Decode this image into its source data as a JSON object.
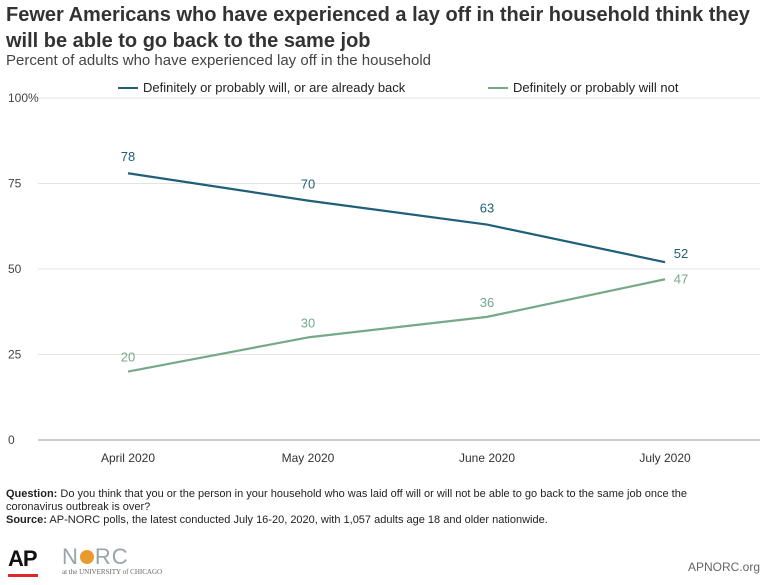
{
  "title": "Fewer Americans who have experienced a lay off in their household think they will be able to go back to the same job",
  "subtitle": "Percent of adults who have experienced lay off in the household",
  "notes": {
    "question_label": "Question:",
    "question_text": "Do you think that you or the person in your household who was laid off will or will not be able to go back to the same job once the coronavirus outbreak is over?",
    "source_label": "Source:",
    "source_text": "AP-NORC polls, the latest conducted July 16-20, 2020, with 1,057 adults age 18 and older nationwide."
  },
  "footer": {
    "ap_logo": "AP",
    "norc_logo_parts": [
      "N",
      "RC"
    ],
    "norc_sub": "at the UNIVERSITY of CHICAGO",
    "site": "APNORC.org"
  },
  "chart_data": {
    "type": "line",
    "categories": [
      "April 2020",
      "May 2020",
      "June 2020",
      "July 2020"
    ],
    "series": [
      {
        "name": "Definitely or probably will, or are already back",
        "values": [
          78,
          70,
          63,
          52
        ],
        "color": "#1f5f7a"
      },
      {
        "name": "Definitely or probably will not",
        "values": [
          20,
          30,
          36,
          47
        ],
        "color": "#76a88a"
      }
    ],
    "yticks": [
      "0",
      "25",
      "50",
      "75",
      "100%"
    ],
    "ytick_values": [
      0,
      25,
      50,
      75,
      100
    ],
    "ylim": [
      0,
      100
    ],
    "grid": true,
    "legend_position": "top"
  }
}
